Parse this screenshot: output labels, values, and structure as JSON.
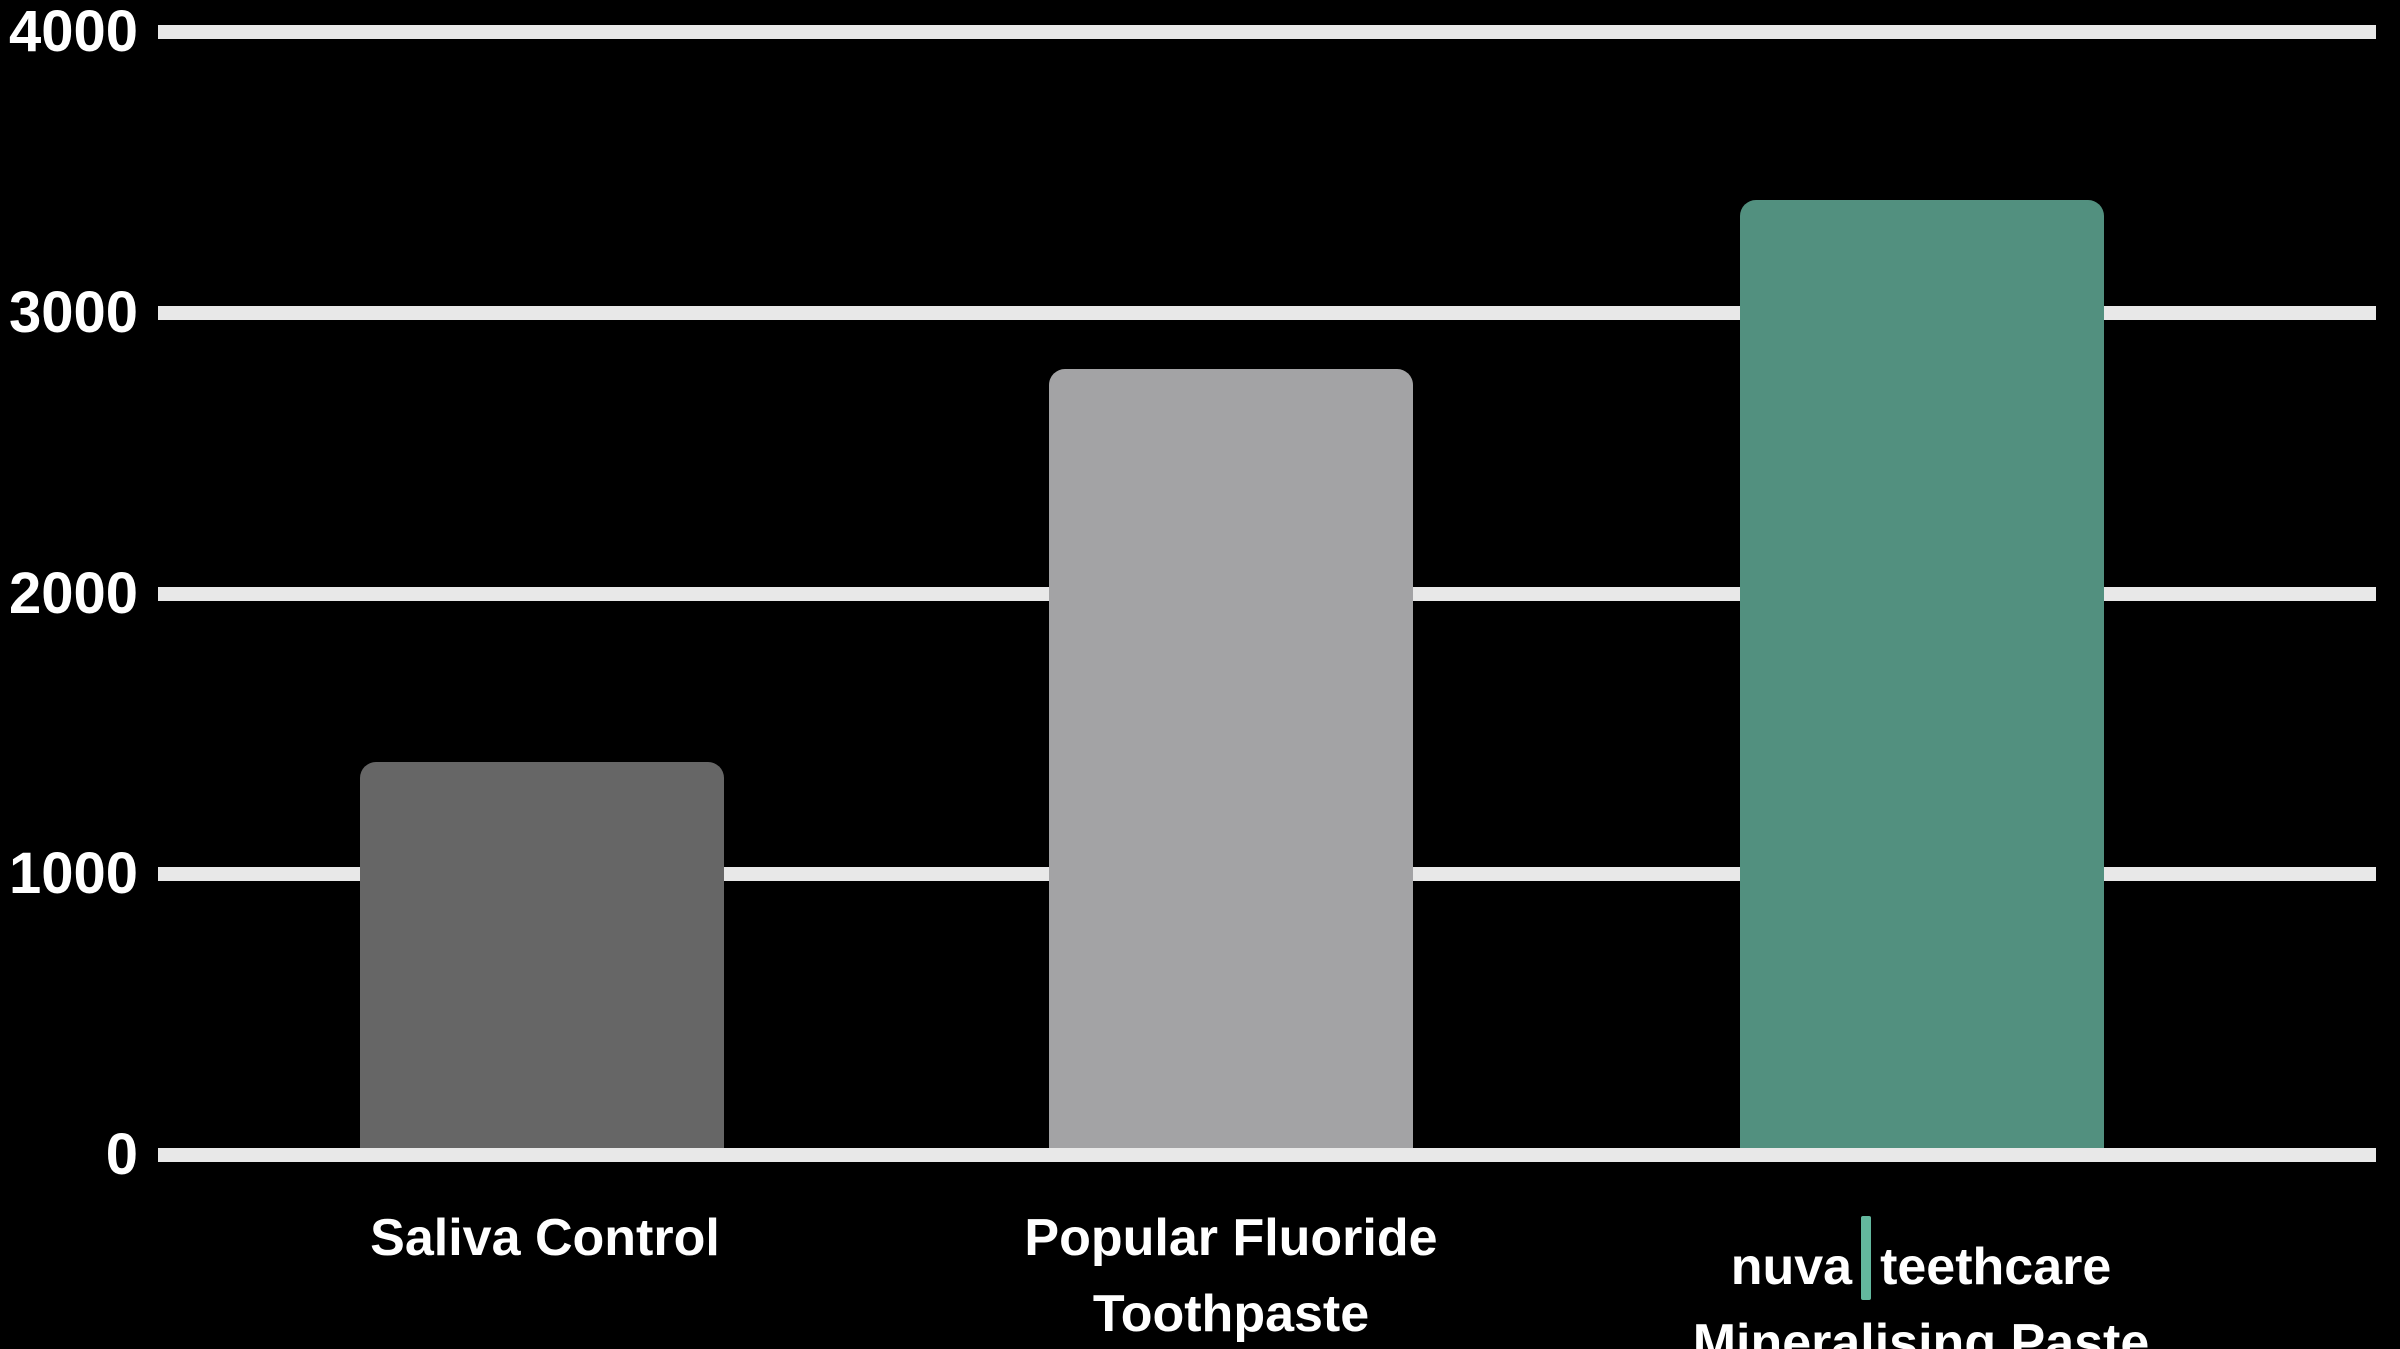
{
  "chart_data": {
    "type": "bar",
    "title": "",
    "xlabel": "",
    "ylabel": "",
    "background_color": "#000000",
    "text_color": "#ffffff",
    "gridline_color": "#e8e8e8",
    "grid": true,
    "legend": false,
    "ylim": [
      0,
      4000
    ],
    "yticks": [
      0,
      1000,
      2000,
      3000,
      4000
    ],
    "ytick_labels": [
      "0",
      "1000",
      "2000",
      "3000",
      "4000"
    ],
    "categories": [
      "Saliva Control",
      "Popular Fluoride Toothpaste",
      "nuva|teethcare Mineralising Paste"
    ],
    "values": [
      1400,
      2800,
      3400
    ],
    "bar_colors": [
      "#666666",
      "#a3a3a5",
      "#52907f"
    ],
    "brand_divider_color": "#63b89e",
    "x_labels": [
      {
        "lines": [
          [
            {
              "t": "Saliva Control"
            }
          ]
        ]
      },
      {
        "lines": [
          [
            {
              "t": "Popular Fluoride"
            }
          ],
          [
            {
              "t": "Toothpaste"
            }
          ]
        ]
      },
      {
        "lines": [
          [
            {
              "t": "nuva"
            },
            {
              "divider": true
            },
            {
              "t": "teethcare"
            }
          ],
          [
            {
              "t": "Mineralising Paste"
            }
          ]
        ]
      }
    ]
  }
}
